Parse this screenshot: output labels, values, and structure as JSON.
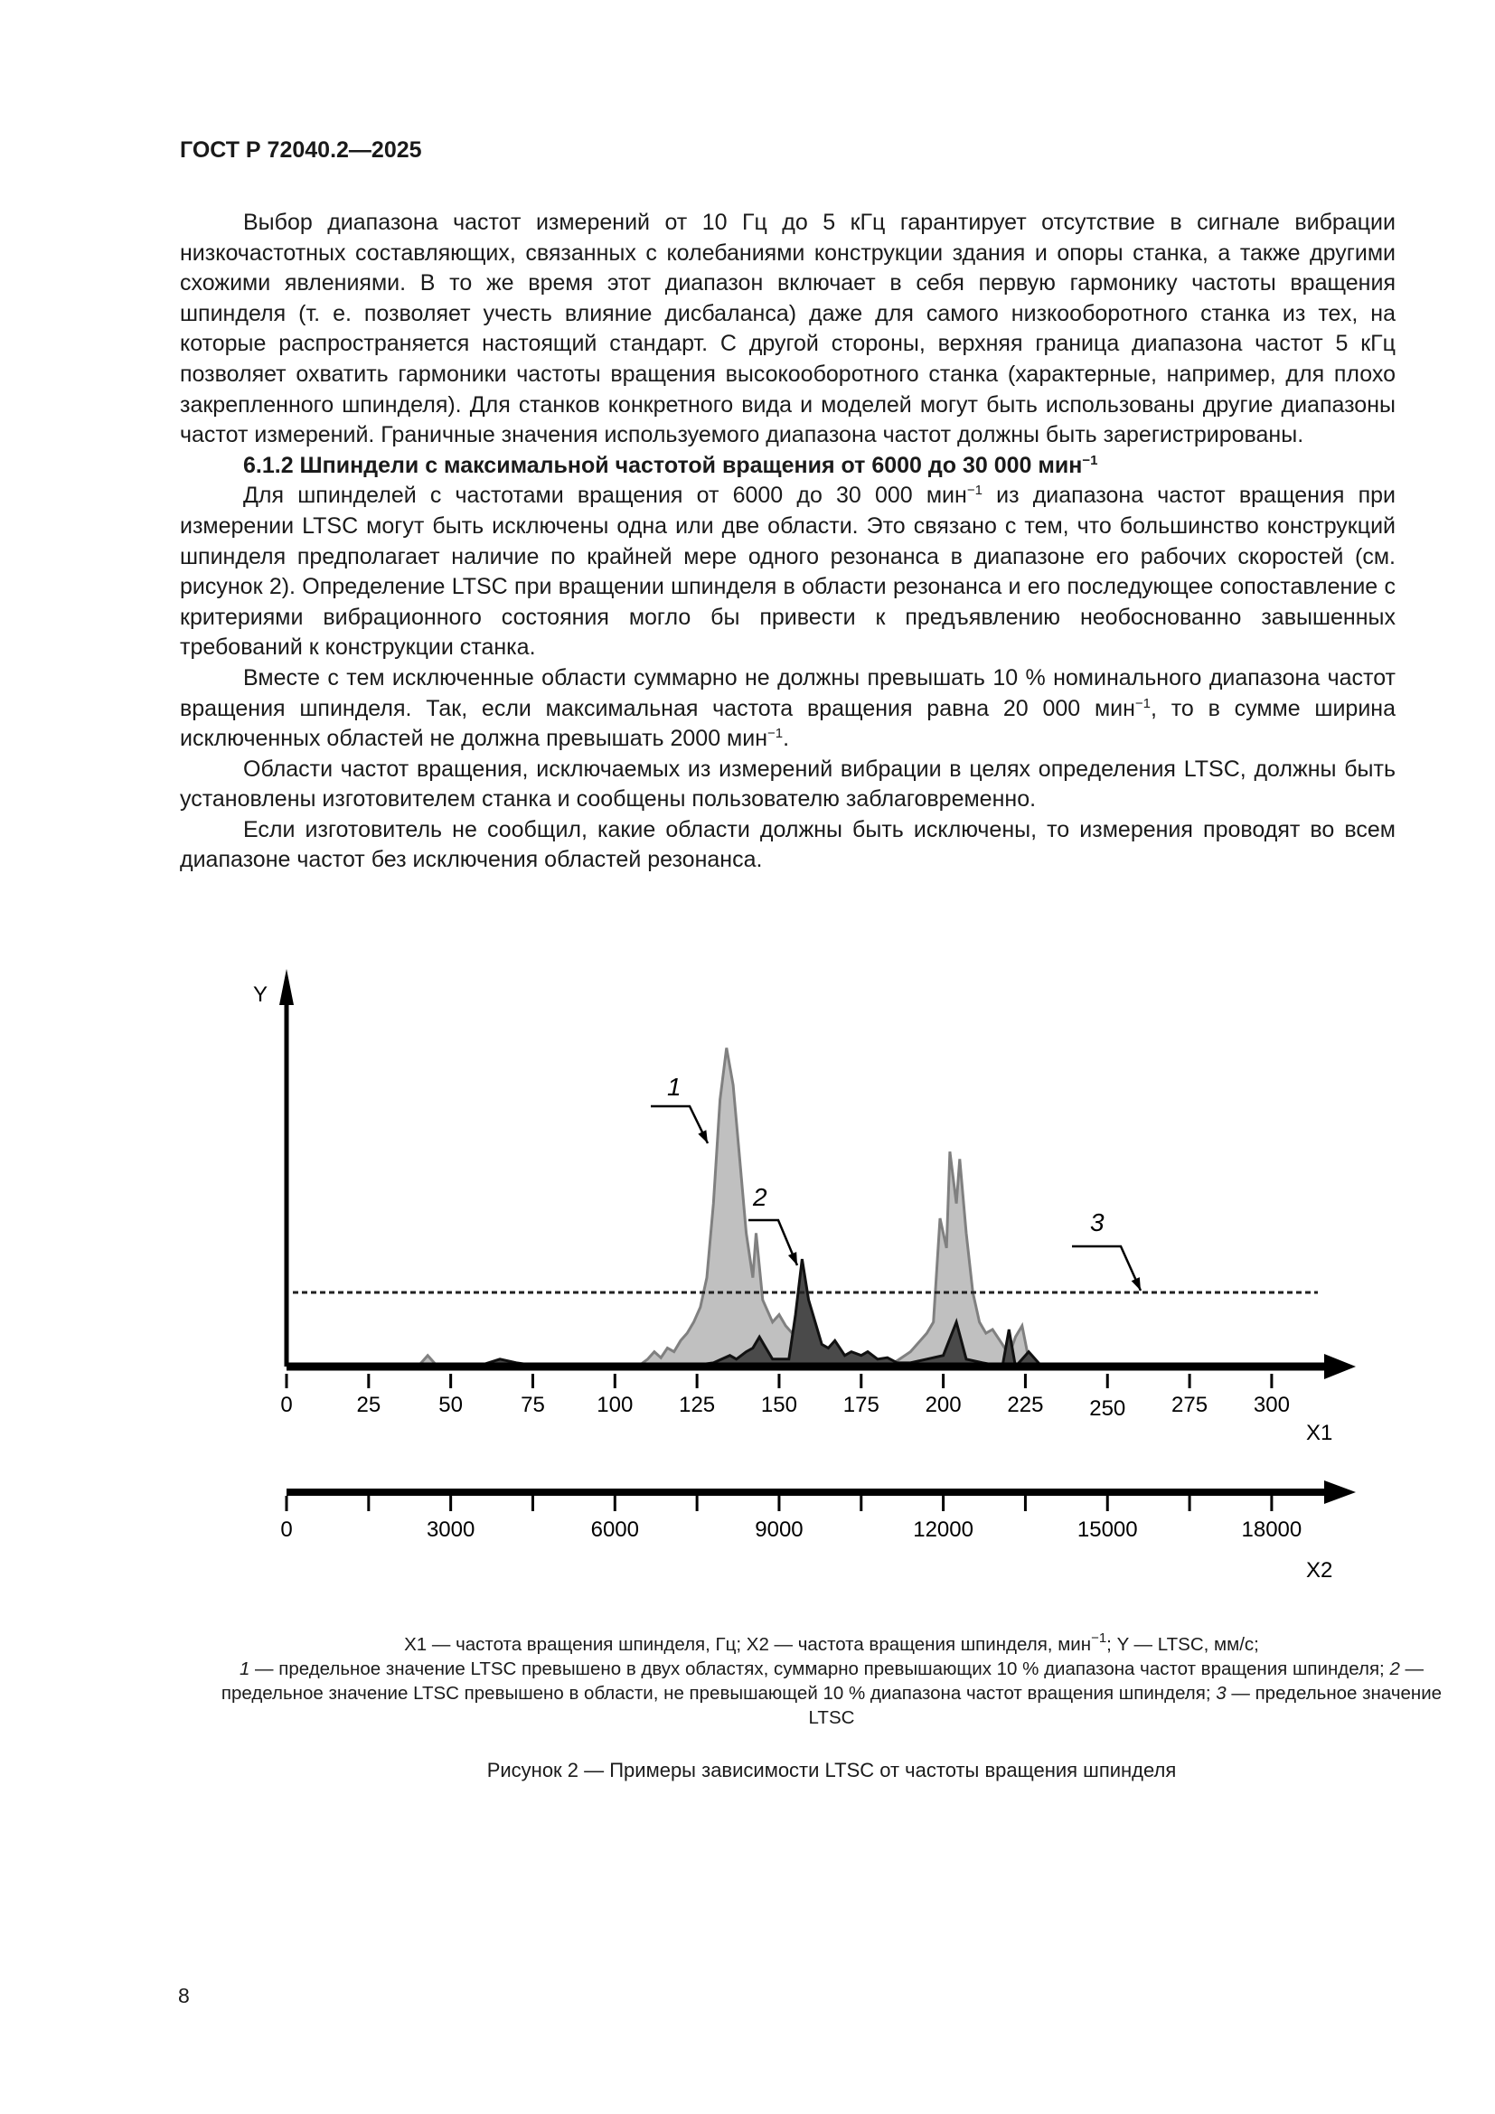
{
  "header": {
    "doc_id": "ГОСТ Р 72040.2—2025"
  },
  "paragraphs": [
    {
      "type": "p",
      "segments": [
        {
          "t": "Выбор диапазона частот измерений от 10 Гц до 5 кГц гарантирует отсутствие в сигнале вибрации низкочастотных составляющих, связанных с колебаниями конструкции здания и опоры станка, а также другими схожими явлениями. В то же время этот диапазон включает в себя первую гармонику частоты вращения шпинделя (т. е. позволяет учесть влияние дисбаланса) даже для самого низкооборотного станка из тех, на которые распространяется настоящий стандарт. С другой стороны, верхняя граница диапазона частот 5 кГц позволяет охватить гармоники частоты вращения высокооборотного станка (характерные, например, для плохо закрепленного шпинделя). Для станков конкретного вида и моделей могут быть использованы другие диапазоны частот измерений. Граничные значения используемого диапазона частот должны быть зарегистрированы."
        }
      ]
    },
    {
      "type": "h",
      "segments": [
        {
          "t": "6.1.2 Шпиндели с максимальной частотой вращения от 6000 до 30 000 мин"
        },
        {
          "sup": "−1"
        }
      ]
    },
    {
      "type": "p",
      "segments": [
        {
          "t": "Для шпинделей с частотами вращения от 6000 до 30 000 мин"
        },
        {
          "sup": "−1"
        },
        {
          "t": " из диапазона частот вращения при измерении LTSC могут быть исключены одна или две области. Это связано с тем, что большинство конструкций шпинделя предполагает наличие по крайней мере одного резонанса в диапазоне его рабочих скоростей (см. рисунок 2). Определение LTSC при вращении шпинделя в области резонанса и его последующее сопоставление с критериями вибрационного состояния могло бы привести к предъявлению необоснованно завышенных требований к конструкции станка."
        }
      ]
    },
    {
      "type": "p",
      "segments": [
        {
          "t": "Вместе с тем исключенные области суммарно не должны превышать 10 % номинального диапазона частот вращения шпинделя. Так, если максимальная частота вращения равна 20 000 мин"
        },
        {
          "sup": "−1"
        },
        {
          "t": ", то в сумме ширина исключенных областей не должна превышать 2000 мин"
        },
        {
          "sup": "−1"
        },
        {
          "t": "."
        }
      ]
    },
    {
      "type": "p",
      "segments": [
        {
          "t": "Области частот вращения, исключаемых из измерений вибрации в целях определения LTSC, должны быть установлены изготовителем станка и сообщены пользователю заблаговременно."
        }
      ]
    },
    {
      "type": "p",
      "segments": [
        {
          "t": "Если изготовитель не сообщил, какие области должны быть исключены, то измерения проводят во всем диапазоне частот без исключения областей резонанса."
        }
      ]
    }
  ],
  "chart_data": {
    "type": "area",
    "ylabel": "Y",
    "xlabel": "X1",
    "x2label": "X2",
    "x_ticks": [
      "0",
      "25",
      "50",
      "75",
      "100",
      "125",
      "150",
      "175",
      "200",
      "225",
      "250",
      "275",
      "300"
    ],
    "x2_ticks": [
      "0",
      "3000",
      "6000",
      "9000",
      "12000",
      "15000",
      "18000"
    ],
    "xlim": [
      0,
      320
    ],
    "x2lim": [
      0,
      19200
    ],
    "y_ticks": "none",
    "grid": false,
    "series": [
      {
        "label": "1",
        "color": "#c0c0c0",
        "stroke": "#808080",
        "points": [
          [
            40,
            0
          ],
          [
            43,
            0.15
          ],
          [
            46,
            0
          ],
          [
            97,
            0
          ],
          [
            107,
            0
          ],
          [
            110,
            0.1
          ],
          [
            112,
            0.2
          ],
          [
            114,
            0.12
          ],
          [
            116,
            0.25
          ],
          [
            118,
            0.2
          ],
          [
            120,
            0.35
          ],
          [
            122,
            0.45
          ],
          [
            124,
            0.6
          ],
          [
            126,
            0.8
          ],
          [
            128,
            1.2
          ],
          [
            130,
            2.2
          ],
          [
            132,
            3.6
          ],
          [
            134,
            4.3
          ],
          [
            136,
            3.8
          ],
          [
            138,
            2.8
          ],
          [
            140,
            1.8
          ],
          [
            142,
            1.2
          ],
          [
            143,
            1.8
          ],
          [
            145,
            0.9
          ],
          [
            148,
            0.6
          ],
          [
            150,
            0.7
          ],
          [
            152,
            0.55
          ],
          [
            155,
            0.4
          ],
          [
            160,
            0.2
          ],
          [
            185,
            0.05
          ],
          [
            190,
            0.2
          ],
          [
            195,
            0.45
          ],
          [
            197,
            0.6
          ],
          [
            199,
            2.0
          ],
          [
            201,
            1.6
          ],
          [
            202,
            2.9
          ],
          [
            204,
            2.2
          ],
          [
            205,
            2.8
          ],
          [
            207,
            1.8
          ],
          [
            209,
            1.0
          ],
          [
            211,
            0.6
          ],
          [
            213,
            0.45
          ],
          [
            215,
            0.5
          ],
          [
            218,
            0.3
          ],
          [
            220,
            0.15
          ],
          [
            222,
            0.4
          ],
          [
            224,
            0.55
          ],
          [
            226,
            0.1
          ],
          [
            228,
            0
          ]
        ]
      },
      {
        "label": "2",
        "color": "#4a4a4a",
        "stroke": "#111111",
        "points": [
          [
            55,
            0
          ],
          [
            60,
            0.03
          ],
          [
            65,
            0.1
          ],
          [
            70,
            0.05
          ],
          [
            78,
            0
          ],
          [
            120,
            0
          ],
          [
            125,
            0.02
          ],
          [
            130,
            0.05
          ],
          [
            135,
            0.15
          ],
          [
            137,
            0.1
          ],
          [
            140,
            0.2
          ],
          [
            142,
            0.25
          ],
          [
            144,
            0.4
          ],
          [
            146,
            0.25
          ],
          [
            148,
            0.1
          ],
          [
            153,
            0.1
          ],
          [
            155,
            0.7
          ],
          [
            157,
            1.45
          ],
          [
            159,
            0.9
          ],
          [
            161,
            0.6
          ],
          [
            163,
            0.3
          ],
          [
            165,
            0.25
          ],
          [
            167,
            0.35
          ],
          [
            170,
            0.15
          ],
          [
            172,
            0.2
          ],
          [
            175,
            0.15
          ],
          [
            177,
            0.2
          ],
          [
            180,
            0.1
          ],
          [
            183,
            0.12
          ],
          [
            186,
            0.05
          ],
          [
            190,
            0.05
          ],
          [
            195,
            0.1
          ],
          [
            200,
            0.15
          ],
          [
            204,
            0.6
          ],
          [
            207,
            0.1
          ],
          [
            212,
            0.05
          ],
          [
            218,
            0
          ],
          [
            220,
            0.5
          ],
          [
            222,
            0
          ],
          [
            226,
            0.2
          ],
          [
            230,
            0
          ]
        ]
      }
    ],
    "threshold": {
      "label": "3",
      "value": 1
    }
  },
  "caption": {
    "line1a": "X1 — частота вращения шпинделя, Гц; X2 — частота вращения шпинделя, мин",
    "line1sup": "−1",
    "line1b": "; Y — LTSC, мм/с;",
    "n1": "1",
    "d1": " — предельное значение LTSC превышено в двух областях, суммарно превышающих 10 % диапазона частот вращения шпинделя; ",
    "n2": "2",
    "d2": " — предельное значение LTSC превышено в области, не превышающей 10 % диапазона частот вращения шпинделя; ",
    "n3": "3",
    "d3": " — предельное значение LTSC"
  },
  "figure_title": "Рисунок 2 — Примеры зависимости LTSC от частоты вращения шпинделя",
  "page_number": "8"
}
